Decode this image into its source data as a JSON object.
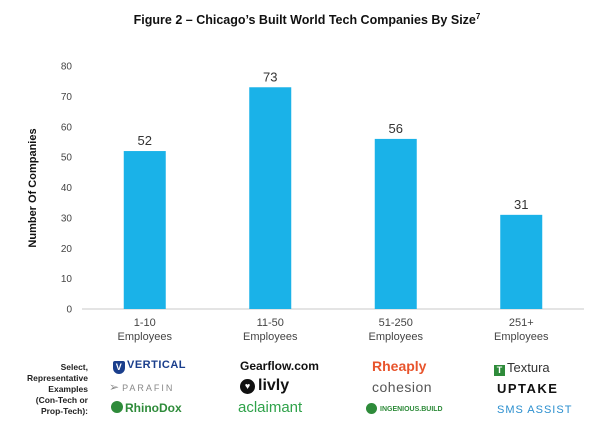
{
  "chart_data": {
    "type": "bar",
    "title": "Figure 2 – Chicago’s Built World Tech Companies By Size",
    "title_sup": "7",
    "ylabel": "Number Of Companies",
    "xlabel": "",
    "ylim": [
      0,
      80
    ],
    "yticks": [
      0,
      10,
      20,
      30,
      40,
      50,
      60,
      70,
      80
    ],
    "categories": [
      [
        "1-10",
        "Employees"
      ],
      [
        "11-50",
        "Employees"
      ],
      [
        "51-250",
        "Employees"
      ],
      [
        "251+",
        "Employees"
      ]
    ],
    "values": [
      52,
      73,
      56,
      31
    ],
    "bar_color": "#1AB2E8",
    "grid": false,
    "legend": "none"
  },
  "examples": {
    "label": [
      "Select,",
      "Representative",
      "Examples",
      "(Con-Tech or",
      "Prop-Tech):"
    ],
    "logos": [
      [
        {
          "text": "VERTICAL",
          "icon": "v-shield-icon",
          "color": "#1A3E8C"
        },
        {
          "text": "PARAFIN",
          "icon": "paper-plane-icon",
          "color": "#888888"
        },
        {
          "text": "RhinoDox",
          "icon": "rhino-icon",
          "color": "#2E8B3A"
        }
      ],
      [
        {
          "text": "Gearflow.com",
          "icon": "",
          "color": "#111111"
        },
        {
          "text": "livly",
          "icon": "heart-badge-icon",
          "color": "#111111"
        },
        {
          "text": "aclaimant",
          "icon": "",
          "color": "#2FA24A"
        }
      ],
      [
        {
          "text": "Rheaply",
          "icon": "",
          "color": "#E8542C"
        },
        {
          "text": "cohesion",
          "icon": "",
          "color": "#555555"
        },
        {
          "text": "INGENIOUS.BUILD",
          "icon": "leaf-circle-icon",
          "color": "#2E8B3A"
        }
      ],
      [
        {
          "text": "Textura",
          "icon": "t-block-icon",
          "color": "#333333"
        },
        {
          "text": "UPTAKE",
          "icon": "",
          "color": "#111111"
        },
        {
          "text": "SMS ASSIST",
          "icon": "",
          "color": "#2B8FCF"
        }
      ]
    ]
  }
}
